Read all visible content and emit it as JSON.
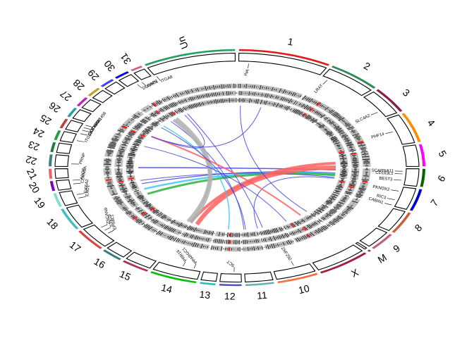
{
  "chart_data": {
    "type": "circos",
    "chromosomes": [
      {
        "name": "1",
        "color": "#e31a1c"
      },
      {
        "name": "2",
        "color": "#2e8b57"
      },
      {
        "name": "3",
        "color": "#8b1a4a"
      },
      {
        "name": "4",
        "color": "#ff8c00"
      },
      {
        "name": "5",
        "color": "#ff00ff"
      },
      {
        "name": "6",
        "color": "#006400"
      },
      {
        "name": "7",
        "color": "#0000cd"
      },
      {
        "name": "8",
        "color": "#cd5c3c"
      },
      {
        "name": "9",
        "color": "#c06080"
      },
      {
        "name": "M",
        "color": "#704070"
      },
      {
        "name": "X",
        "color": "#a0203c"
      },
      {
        "name": "10",
        "color": "#ff6a3d"
      },
      {
        "name": "11",
        "color": "#5fb3b3"
      },
      {
        "name": "12",
        "color": "#5050c0"
      },
      {
        "name": "13",
        "color": "#20c0c0"
      },
      {
        "name": "14",
        "color": "#00c000"
      },
      {
        "name": "15",
        "color": "#b03060"
      },
      {
        "name": "16",
        "color": "#2f7f7f"
      },
      {
        "name": "17",
        "color": "#e04040"
      },
      {
        "name": "18",
        "color": "#40c0c0"
      },
      {
        "name": "19",
        "color": "#80e0d0"
      },
      {
        "name": "20",
        "color": "#8000c0"
      },
      {
        "name": "21",
        "color": "#f06060"
      },
      {
        "name": "22",
        "color": "#408080"
      },
      {
        "name": "23",
        "color": "#208040"
      },
      {
        "name": "24",
        "color": "#20a040"
      },
      {
        "name": "25",
        "color": "#c04040"
      },
      {
        "name": "26",
        "color": "#20a0a0"
      },
      {
        "name": "27",
        "color": "#c020c0"
      },
      {
        "name": "28",
        "color": "#c0a020"
      },
      {
        "name": "29",
        "color": "#4040ff"
      },
      {
        "name": "30",
        "color": "#0000ff"
      },
      {
        "name": "31",
        "color": "#d06090"
      },
      {
        "name": "Un",
        "color": "#20a060"
      }
    ],
    "chromosome_spans_deg": [
      {
        "name": "1",
        "start": 0,
        "end": 30
      },
      {
        "name": "2",
        "start": 30,
        "end": 48
      },
      {
        "name": "3",
        "start": 48,
        "end": 62
      },
      {
        "name": "4",
        "start": 62,
        "end": 78
      },
      {
        "name": "5",
        "start": 78,
        "end": 90
      },
      {
        "name": "6",
        "start": 90,
        "end": 100
      },
      {
        "name": "7",
        "start": 100,
        "end": 112
      },
      {
        "name": "8",
        "start": 112,
        "end": 124
      },
      {
        "name": "9",
        "start": 124,
        "end": 134
      },
      {
        "name": "M",
        "start": 134,
        "end": 136
      },
      {
        "name": "X",
        "start": 136,
        "end": 154
      },
      {
        "name": "10",
        "start": 154,
        "end": 168
      },
      {
        "name": "11",
        "start": 168,
        "end": 178
      },
      {
        "name": "12",
        "start": 178,
        "end": 186
      },
      {
        "name": "13",
        "start": 186,
        "end": 192
      },
      {
        "name": "14",
        "start": 192,
        "end": 208
      },
      {
        "name": "15",
        "start": 208,
        "end": 218
      },
      {
        "name": "16",
        "start": 218,
        "end": 226
      },
      {
        "name": "17",
        "start": 226,
        "end": 238
      },
      {
        "name": "18",
        "start": 238,
        "end": 250
      },
      {
        "name": "19",
        "start": 250,
        "end": 258
      },
      {
        "name": "20",
        "start": 258,
        "end": 264
      },
      {
        "name": "21",
        "start": 264,
        "end": 270
      },
      {
        "name": "22",
        "start": 270,
        "end": 277
      },
      {
        "name": "23",
        "start": 277,
        "end": 283
      },
      {
        "name": "24",
        "start": 283,
        "end": 289
      },
      {
        "name": "25",
        "start": 289,
        "end": 295
      },
      {
        "name": "26",
        "start": 295,
        "end": 301
      },
      {
        "name": "27",
        "start": 301,
        "end": 307
      },
      {
        "name": "28",
        "start": 307,
        "end": 313
      },
      {
        "name": "29",
        "start": 313,
        "end": 319
      },
      {
        "name": "30",
        "start": 319,
        "end": 325
      },
      {
        "name": "31",
        "start": 325,
        "end": 330
      },
      {
        "name": "Un",
        "start": 330,
        "end": 360
      }
    ],
    "genes": [
      {
        "name": "INA",
        "angle": 4
      },
      {
        "name": "LRAT",
        "angle": 33
      },
      {
        "name": "SLC4A2",
        "angle": 58
      },
      {
        "name": "PHF14",
        "angle": 70
      },
      {
        "name": "SCARNA11",
        "angle": 92
      },
      {
        "name": "CD163L1",
        "angle": 93.5
      },
      {
        "name": "BEST3",
        "angle": 97
      },
      {
        "name": "PKNOX2",
        "angle": 103
      },
      {
        "name": "RIC3",
        "angle": 108
      },
      {
        "name": "CABIN1",
        "angle": 111
      },
      {
        "name": "ZNF292",
        "angle": 160
      },
      {
        "name": "SCT",
        "angle": 181
      },
      {
        "name": "PPARGC1",
        "angle": 195
      },
      {
        "name": "PRR16",
        "angle": 199
      },
      {
        "name": "EPS8L1",
        "angle": 231
      },
      {
        "name": "STK19",
        "angle": 233
      },
      {
        "name": "ZSCAN9",
        "angle": 235
      },
      {
        "name": "EXO1",
        "angle": 253
      },
      {
        "name": "EIF5A2",
        "angle": 255
      },
      {
        "name": "CDKN1A",
        "angle": 261
      },
      {
        "name": "ANO8",
        "angle": 263
      },
      {
        "name": "PRNP",
        "angle": 272
      },
      {
        "name": "ITGB8",
        "angle": 285
      },
      {
        "name": "CA8",
        "angle": 289
      },
      {
        "name": "OTUB2",
        "angle": 291
      },
      {
        "name": "CAPN6",
        "angle": 292.5
      },
      {
        "name": "KIAA1456",
        "angle": 294
      },
      {
        "name": "DLGAP2",
        "angle": 323
      },
      {
        "name": "PRKN",
        "angle": 325
      },
      {
        "name": "ITGA8",
        "angle": 331
      }
    ],
    "links": [
      {
        "from": 92,
        "to": 270,
        "color": "#4040e0",
        "width": 1.5
      },
      {
        "from": 95,
        "to": 255,
        "color": "#4040e0",
        "width": 1.2
      },
      {
        "from": 96,
        "to": 250,
        "color": "#40c8f0",
        "width": 2.5
      },
      {
        "from": 97,
        "to": 245,
        "color": "#30b040",
        "width": 3
      },
      {
        "from": 99,
        "to": 258,
        "color": "#4040e0",
        "width": 1
      },
      {
        "from": 100,
        "to": 168,
        "color": "#4040e0",
        "width": 1
      },
      {
        "from": 90,
        "to": 204,
        "color": "#ff6060",
        "width": 6
      },
      {
        "from": 86,
        "to": 208,
        "color": "#ff6060",
        "width": 4
      },
      {
        "from": 330,
        "to": 165,
        "color": "#4040e0",
        "width": 1
      },
      {
        "from": 318,
        "to": 176,
        "color": "#4040e0",
        "width": 1
      },
      {
        "from": 312,
        "to": 185,
        "color": "#40c8f0",
        "width": 1.5
      },
      {
        "from": 322,
        "to": 208,
        "color": "#b0b0b0",
        "width": 5
      },
      {
        "from": 320,
        "to": 210,
        "color": "#b0b0b0",
        "width": 4
      },
      {
        "from": 14,
        "to": 300,
        "color": "#4040e0",
        "width": 1
      },
      {
        "from": 300,
        "to": 140,
        "color": "#ff6060",
        "width": 2
      },
      {
        "from": 2,
        "to": 135,
        "color": "#4040e0",
        "width": 1
      },
      {
        "from": 328,
        "to": 300,
        "color": "#4040e0",
        "width": 1
      },
      {
        "from": 290,
        "to": 150,
        "color": "#4040e0",
        "width": 1
      },
      {
        "from": 310,
        "to": 175,
        "color": "#4040e0",
        "width": 1
      }
    ]
  }
}
